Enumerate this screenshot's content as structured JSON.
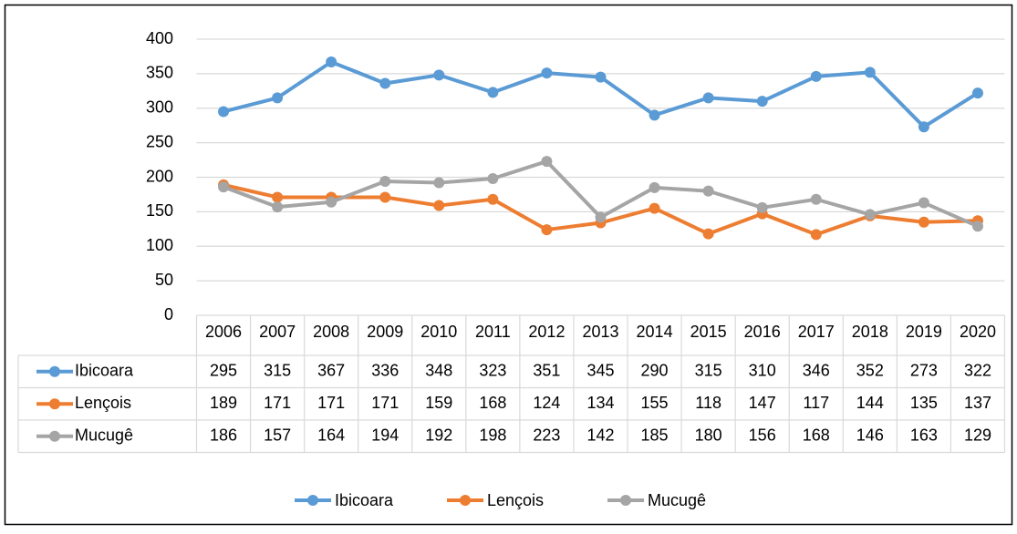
{
  "chart_data": {
    "type": "line",
    "categories": [
      "2006",
      "2007",
      "2008",
      "2009",
      "2010",
      "2011",
      "2012",
      "2013",
      "2014",
      "2015",
      "2016",
      "2017",
      "2018",
      "2019",
      "2020"
    ],
    "series": [
      {
        "name": "Ibicoara",
        "color": "#5b9bd5",
        "values": [
          295,
          315,
          367,
          336,
          348,
          323,
          351,
          345,
          290,
          315,
          310,
          346,
          352,
          273,
          322
        ]
      },
      {
        "name": "Lençois",
        "color": "#ed7d31",
        "values": [
          189,
          171,
          171,
          171,
          159,
          168,
          124,
          134,
          155,
          118,
          147,
          117,
          144,
          135,
          137
        ]
      },
      {
        "name": "Mucugê",
        "color": "#a5a5a5",
        "values": [
          186,
          157,
          164,
          194,
          192,
          198,
          223,
          142,
          185,
          180,
          156,
          168,
          146,
          163,
          129
        ]
      }
    ],
    "ylim": [
      0,
      400
    ],
    "yticks": [
      0,
      50,
      100,
      150,
      200,
      250,
      300,
      350,
      400
    ],
    "grid": true,
    "legend": "bottom"
  }
}
